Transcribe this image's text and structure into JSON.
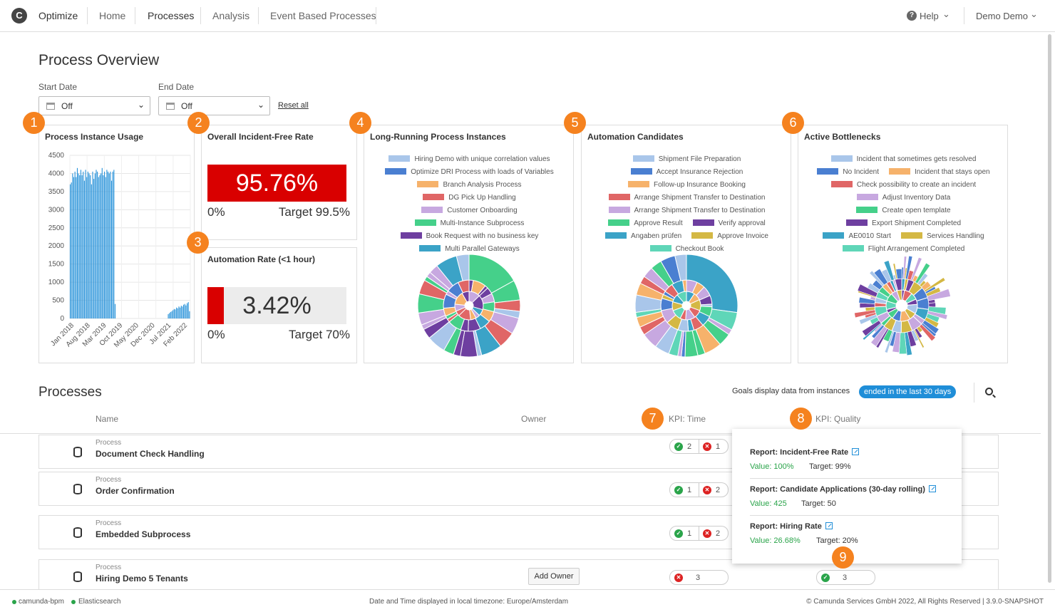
{
  "nav": {
    "logo": "C",
    "app": "Optimize",
    "items": [
      "Home",
      "Processes",
      "Analysis",
      "Event Based Processes"
    ],
    "help": "Help",
    "user": "Demo Demo"
  },
  "overview": {
    "title": "Process Overview"
  },
  "filters": {
    "start_label": "Start Date",
    "start_value": "Off",
    "end_label": "End Date",
    "end_value": "Off",
    "reset": "Reset all"
  },
  "badges": [
    "1",
    "2",
    "3",
    "4",
    "5",
    "6",
    "7",
    "8",
    "9"
  ],
  "usage": {
    "title": "Process Instance Usage",
    "chart_data": {
      "type": "bar",
      "title": "Process Instance Usage",
      "ylim": [
        0,
        4500
      ],
      "yticks": [
        "4500",
        "4000",
        "3500",
        "3000",
        "2500",
        "2000",
        "1500",
        "1000",
        "500",
        "0"
      ],
      "xticks": [
        "Jan 2018",
        "Aug 2018",
        "Mar 2019",
        "Oct 2019",
        "May 2020",
        "Dec 2020",
        "Jul 2021",
        "Feb 2022"
      ],
      "values": [
        3700,
        3750,
        4000,
        3900,
        4050,
        3900,
        4150,
        4000,
        3950,
        4100,
        3950,
        4050,
        3800,
        4100,
        3900,
        4050,
        4000,
        3950,
        3700,
        4050,
        3850,
        4000,
        4100,
        4050,
        3900,
        3950,
        4000,
        4150,
        3950,
        4050,
        3900,
        4100,
        4050,
        4000,
        4050,
        3800,
        4050,
        4100,
        400,
        0,
        0,
        0,
        0,
        0,
        0,
        0,
        0,
        0,
        0,
        0,
        0,
        0,
        0,
        0,
        0,
        0,
        0,
        0,
        0,
        0,
        0,
        0,
        0,
        0,
        0,
        0,
        0,
        0,
        0,
        0,
        0,
        0,
        0,
        0,
        0,
        0,
        0,
        0,
        0,
        0,
        0,
        0,
        0,
        120,
        150,
        180,
        200,
        230,
        260,
        250,
        300,
        280,
        330,
        300,
        350,
        330,
        380,
        400,
        360,
        420,
        450,
        200
      ]
    }
  },
  "incident": {
    "title": "Overall Incident-Free Rate",
    "value": "95.76%",
    "min": "0%",
    "target": "Target 99.5%",
    "color": "#dd0000"
  },
  "automation": {
    "title": "Automation Rate (<1 hour)",
    "value": "3.42%",
    "min": "0%",
    "target": "Target 70%",
    "color": "#dd0000"
  },
  "longrunning": {
    "title": "Long-Running Process Instances",
    "legend": [
      {
        "label": "Hiring Demo with unique correlation values",
        "color": "#a9c6ea"
      },
      {
        "label": "Optimize DRI Process with loads of Variables",
        "color": "#4a7fd1"
      },
      {
        "label": "Branch Analysis Process",
        "color": "#f6b26b"
      },
      {
        "label": "DG Pick Up Handling",
        "color": "#e06666"
      },
      {
        "label": "Customer Onboarding",
        "color": "#c7a8e0"
      },
      {
        "label": "Multi-Instance Subprocess",
        "color": "#45d08a"
      },
      {
        "label": "Book Request with no business key",
        "color": "#6e3fa0"
      },
      {
        "label": "Multi Parallel Gateways",
        "color": "#3ba3c7"
      }
    ]
  },
  "automationcand": {
    "title": "Automation Candidates",
    "legend": [
      {
        "label": "Shipment File Preparation",
        "color": "#a9c6ea"
      },
      {
        "label": "Accept Insurance Rejection",
        "color": "#4a7fd1"
      },
      {
        "label": "Follow-up Insurance Booking",
        "color": "#f6b26b"
      },
      {
        "label": "Arrange Shipment Transfer to Destination",
        "color": "#e06666"
      },
      {
        "label": "Arrange Shipment Transfer to Destination",
        "color": "#c7a8e0"
      },
      {
        "label": "Approve Result",
        "color": "#45d08a"
      },
      {
        "label": "Verify approval",
        "color": "#6e3fa0"
      },
      {
        "label": "Angaben prüfen",
        "color": "#3ba3c7"
      },
      {
        "label": "Approve Invoice",
        "color": "#d4b844"
      },
      {
        "label": "Checkout Book",
        "color": "#5fd6b8"
      }
    ]
  },
  "bottlenecks": {
    "title": "Active Bottlenecks",
    "legend": [
      {
        "label": "Incident that sometimes gets resolved",
        "color": "#a9c6ea"
      },
      {
        "label": "No Incident",
        "color": "#4a7fd1"
      },
      {
        "label": "Incident that stays open",
        "color": "#f6b26b"
      },
      {
        "label": "Check possibility to create an incident",
        "color": "#e06666"
      },
      {
        "label": "Adjust Inventory Data",
        "color": "#c7a8e0"
      },
      {
        "label": "Create open template",
        "color": "#45d08a"
      },
      {
        "label": "Export Shipment Completed",
        "color": "#6e3fa0"
      },
      {
        "label": "AE0010 Start",
        "color": "#3ba3c7"
      },
      {
        "label": "Services Handling",
        "color": "#d4b844"
      },
      {
        "label": "Flight Arrangement Completed",
        "color": "#5fd6b8"
      }
    ]
  },
  "processes": {
    "title": "Processes",
    "goals_text": "Goals display data from instances",
    "goals_badge": "ended in the last 30 days",
    "columns": {
      "name": "Name",
      "owner": "Owner",
      "kpi_time": "KPI: Time",
      "kpi_quality": "KPI: Quality"
    },
    "rows": [
      {
        "type": "Process",
        "name": "Document Check Handling",
        "ok": "2",
        "bad": "1"
      },
      {
        "type": "Process",
        "name": "Order Confirmation",
        "ok": "1",
        "bad": "2"
      },
      {
        "type": "Process",
        "name": "Embedded Subprocess",
        "ok": "1",
        "bad": "2"
      },
      {
        "type": "Process",
        "name": "Hiring Demo 5 Tenants",
        "owner_button": "Add Owner",
        "time_bad": "3",
        "quality_ok": "3"
      }
    ]
  },
  "popup": {
    "reports": [
      {
        "title": "Report: Incident-Free Rate",
        "value": "Value: 100%",
        "target": "Target: 99%"
      },
      {
        "title": "Report: Candidate Applications (30-day rolling)",
        "value": "Value: 425",
        "target": "Target: 50"
      },
      {
        "title": "Report: Hiring Rate",
        "value": "Value: 26.68%",
        "target": "Target: 20%"
      }
    ]
  },
  "footer": {
    "engine": "camunda-bpm",
    "search": "Elasticsearch",
    "tz": "Date and Time displayed in local timezone: Europe/Amsterdam",
    "copy": "© Camunda Services GmbH 2022, All Rights Reserved | 3.9.0-SNAPSHOT"
  }
}
